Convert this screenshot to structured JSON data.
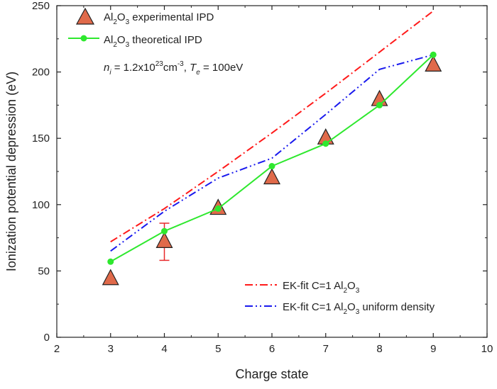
{
  "chart_data": {
    "type": "line",
    "xlabel": "Charge state",
    "ylabel": "Ionization potential depression (eV)",
    "xlim": [
      2,
      10
    ],
    "ylim": [
      0,
      250
    ],
    "x_ticks": [
      2,
      3,
      4,
      5,
      6,
      7,
      8,
      9,
      10
    ],
    "y_ticks": [
      0,
      50,
      100,
      150,
      200,
      250
    ],
    "grid": false,
    "annotation": {
      "n_sym": "n",
      "n_sub": "i",
      "n_mid": " = 1.2x10",
      "n_exp": "23",
      "n_unit": "cm",
      "n_unit_exp": "-3",
      "sep": ",  ",
      "t_sym": "T",
      "t_sub": "e",
      "t_val": " = 100eV"
    },
    "series": [
      {
        "name": "Al2O3 experimental IPD",
        "label_parts": [
          "Al",
          "2",
          "O",
          "3",
          " experimental IPD"
        ],
        "marker": "triangle",
        "color": "#e06a4a",
        "x": [
          3,
          4,
          5,
          6,
          7,
          8,
          9
        ],
        "y": [
          45,
          73,
          98,
          121,
          151,
          180,
          206
        ],
        "error_bars": [
          {
            "x": 4,
            "low": 58,
            "high": 86
          }
        ]
      },
      {
        "name": "Al2O3 theoretical IPD",
        "label_parts": [
          "Al",
          "2",
          "O",
          "3",
          " theoretical IPD"
        ],
        "marker": "circle",
        "color": "#2ee82e",
        "x": [
          3,
          4,
          5,
          6,
          7,
          8,
          9
        ],
        "y": [
          57,
          80,
          97,
          129,
          146,
          175,
          213
        ]
      },
      {
        "name": "EK-fit C=1 Al2O3",
        "label_parts": [
          "EK-fit C=1 Al",
          "2",
          "O",
          "3",
          ""
        ],
        "style": "dash-dot",
        "color": "#ff1a1a",
        "x": [
          3,
          4,
          5,
          6,
          7,
          8,
          9
        ],
        "y": [
          72,
          97,
          125,
          154,
          184,
          215,
          246
        ]
      },
      {
        "name": "EK-fit C=1 Al2O3 uniform density",
        "label_parts": [
          "EK-fit C=1 Al",
          "2",
          "O",
          "3",
          " uniform density"
        ],
        "style": "dash-dot-dot",
        "color": "#1a1aee",
        "x": [
          3,
          4,
          5,
          6,
          7,
          8,
          9
        ],
        "y": [
          65,
          95,
          120,
          135,
          168,
          202,
          213
        ]
      }
    ]
  }
}
